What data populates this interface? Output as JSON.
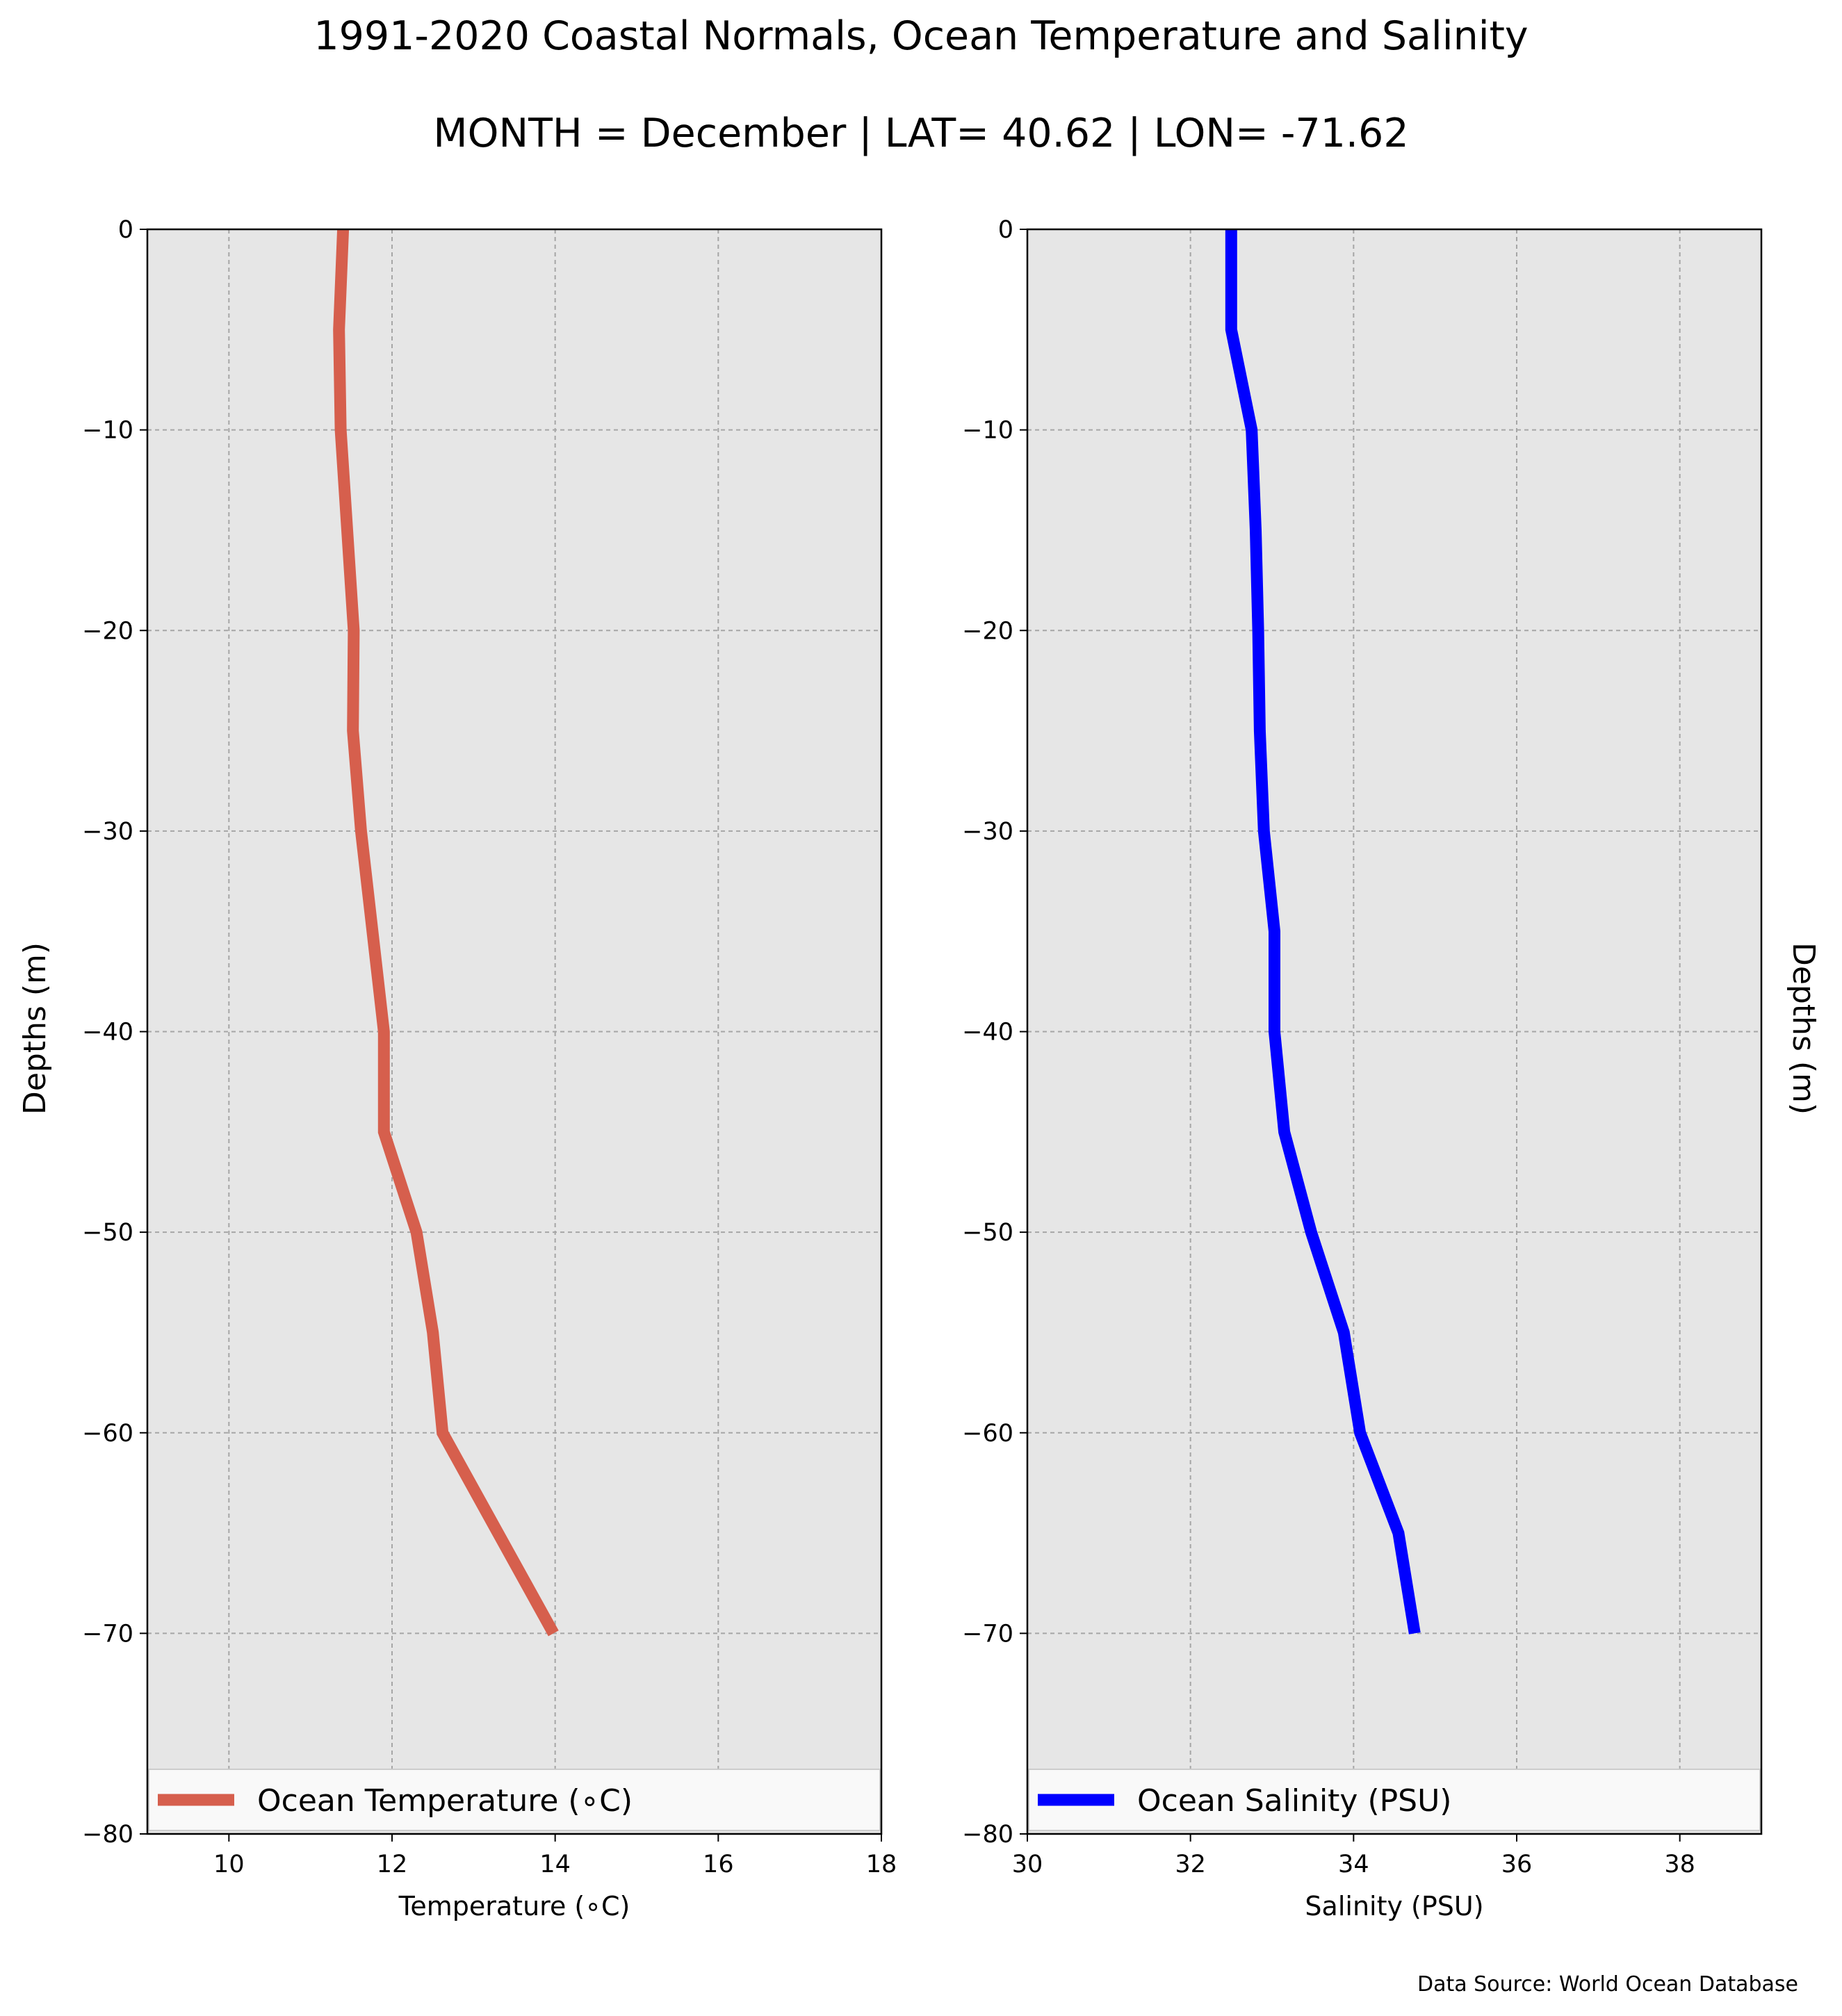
{
  "figure": {
    "title": "1991-2020 Coastal Normals, Ocean Temperature and Salinity",
    "subtitle": "MONTH = December | LAT= 40.62 | LON= -71.62",
    "ylabel_left": "Depths (m)",
    "ylabel_right": "Depths (m)",
    "source": "Data Source: World Ocean Database",
    "background_color": "#e6e6e6"
  },
  "chart_data": [
    {
      "type": "line",
      "xlabel": "Temperature ($^\\circ$C)",
      "xlabel_display": "Temperature (∘C)",
      "ylabel": "Depths (m)",
      "xlim": [
        9,
        18
      ],
      "ylim": [
        -80,
        0
      ],
      "xticks": [
        10,
        12,
        14,
        16,
        18
      ],
      "yticks": [
        0,
        -10,
        -20,
        -30,
        -40,
        -50,
        -60,
        -70,
        -80
      ],
      "ytick_labels": [
        "0",
        "−10",
        "−20",
        "−30",
        "−40",
        "−50",
        "−60",
        "−70",
        "−80"
      ],
      "grid": true,
      "legend_position": "bottom",
      "series": [
        {
          "name": "Ocean Temperature (∘C)",
          "color": "#d65f4d",
          "x": [
            11.4,
            11.35,
            11.37,
            11.45,
            11.53,
            11.52,
            11.62,
            11.9,
            11.9,
            12.3,
            12.5,
            12.62,
            13.3,
            13.98
          ],
          "y": [
            0,
            -5,
            -10,
            -15,
            -20,
            -25,
            -30,
            -40,
            -45,
            -50,
            -55,
            -60,
            -65,
            -70
          ]
        }
      ]
    },
    {
      "type": "line",
      "xlabel": "Salinity (PSU)",
      "ylabel": "Depths (m)",
      "xlim": [
        30,
        39
      ],
      "ylim": [
        -80,
        0
      ],
      "xticks": [
        30,
        32,
        34,
        36,
        38
      ],
      "yticks": [
        0,
        -10,
        -20,
        -30,
        -40,
        -50,
        -60,
        -70,
        -80
      ],
      "ytick_labels": [
        "0",
        "−10",
        "−20",
        "−30",
        "−40",
        "−50",
        "−60",
        "−70",
        "−80"
      ],
      "grid": true,
      "legend_position": "bottom",
      "series": [
        {
          "name": "Ocean Salinity (PSU)",
          "color": "#0000ff",
          "x": [
            32.5,
            32.5,
            32.75,
            32.8,
            32.83,
            32.85,
            32.9,
            33.03,
            33.03,
            33.15,
            33.48,
            33.88,
            34.08,
            34.55,
            34.75
          ],
          "y": [
            0,
            -5,
            -10,
            -15,
            -20,
            -25,
            -30,
            -35,
            -40,
            -45,
            -50,
            -55,
            -60,
            -65,
            -70
          ]
        }
      ]
    }
  ]
}
